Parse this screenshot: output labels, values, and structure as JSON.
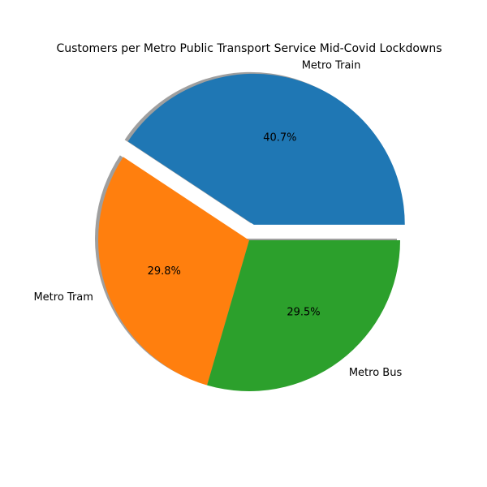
{
  "chart_data": {
    "type": "pie",
    "title": "Customers per Metro Public Transport Service Mid-Covid Lockdowns",
    "slices": [
      {
        "label": "Metro Train",
        "value": 40.7,
        "pct_label": "40.7%",
        "color": "#1f77b4",
        "exploded": true
      },
      {
        "label": "Metro Tram",
        "value": 29.8,
        "pct_label": "29.8%",
        "color": "#ff7f0e",
        "exploded": false
      },
      {
        "label": "Metro Bus",
        "value": 29.5,
        "pct_label": "29.5%",
        "color": "#2ca02c",
        "exploded": false
      }
    ],
    "shadow": true,
    "start_angle_deg": 0,
    "direction": "counterclockwise"
  }
}
